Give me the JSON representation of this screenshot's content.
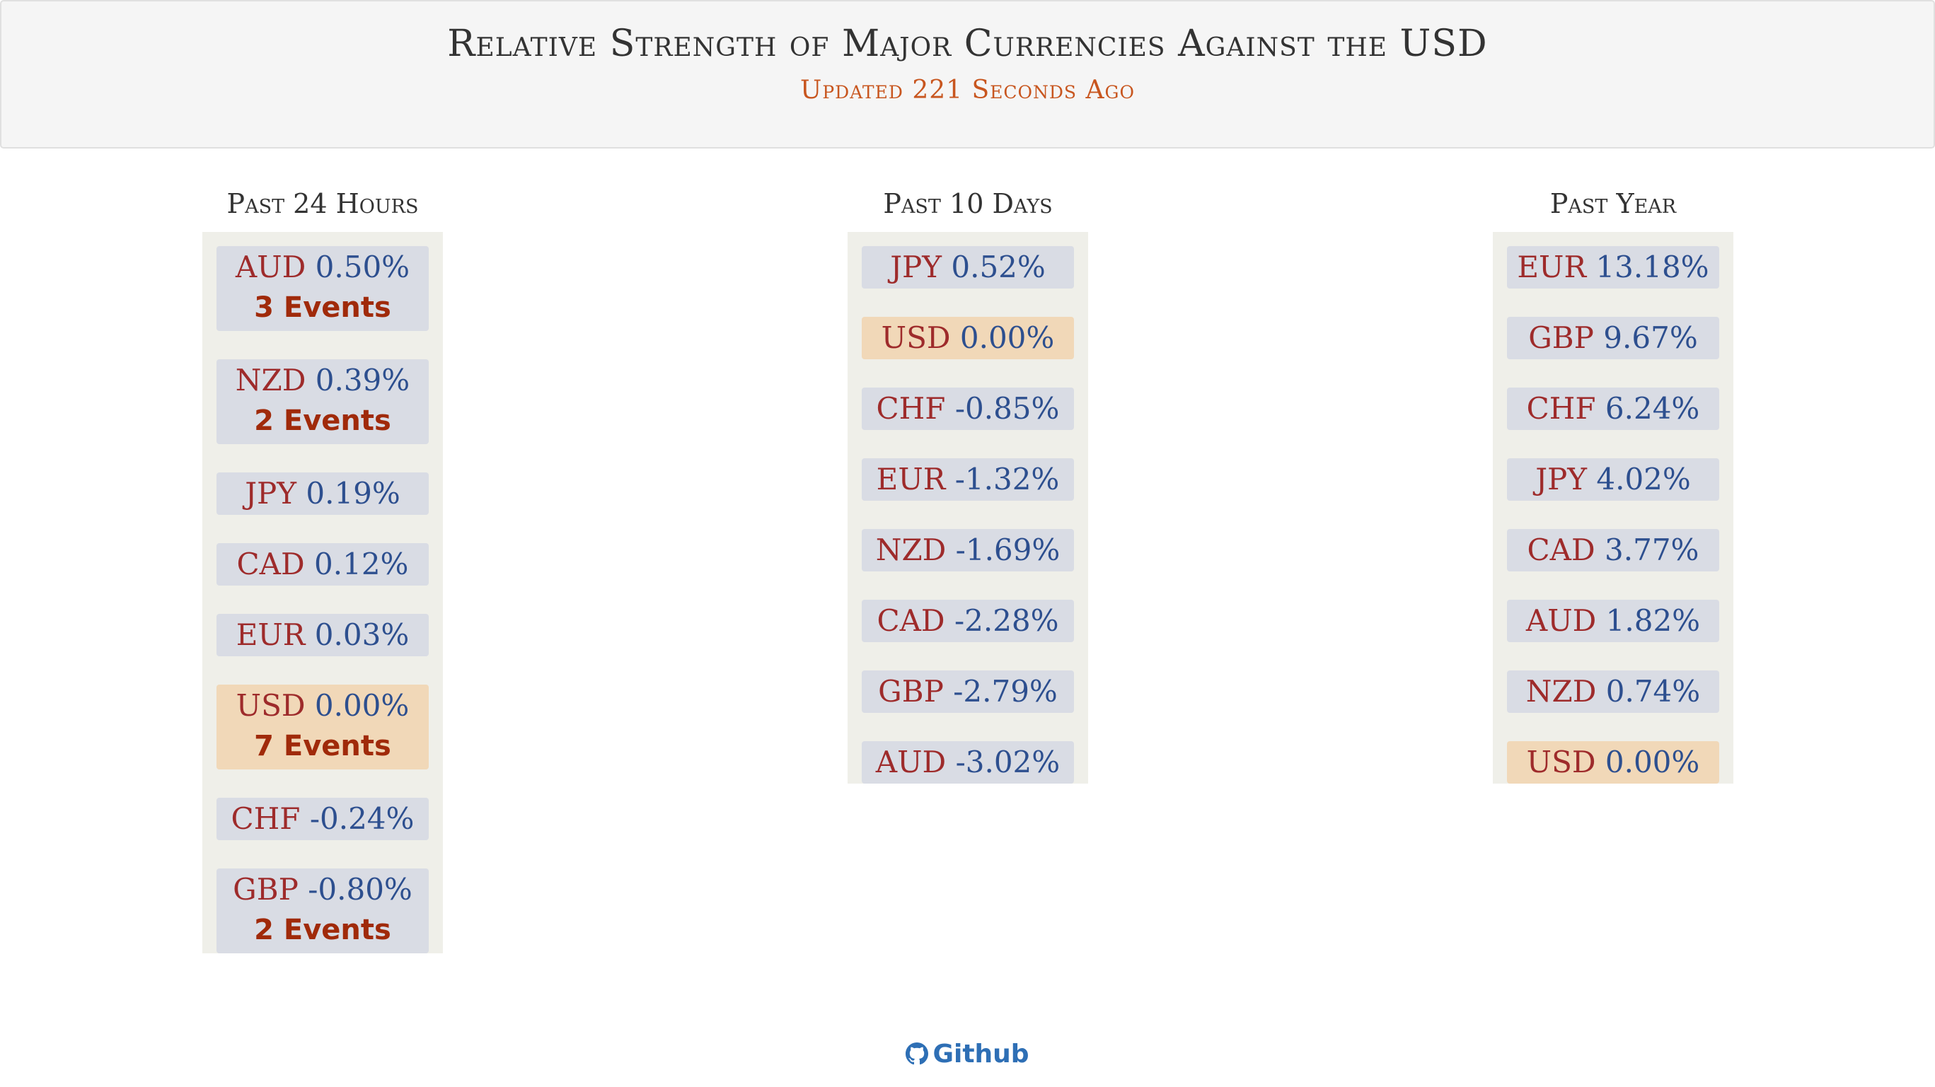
{
  "header": {
    "title": "Relative Strength of Major Currencies Against the USD",
    "subtitle": "Updated 221 Seconds Ago"
  },
  "columns": [
    {
      "heading": "Past 24 Hours",
      "items": [
        {
          "code": "AUD",
          "pct": "0.50%",
          "events": "3 Events"
        },
        {
          "code": "NZD",
          "pct": "0.39%",
          "events": "2 Events"
        },
        {
          "code": "JPY",
          "pct": "0.19%",
          "events": ""
        },
        {
          "code": "CAD",
          "pct": "0.12%",
          "events": ""
        },
        {
          "code": "EUR",
          "pct": "0.03%",
          "events": ""
        },
        {
          "code": "USD",
          "pct": "0.00%",
          "events": "7 Events"
        },
        {
          "code": "CHF",
          "pct": "-0.24%",
          "events": ""
        },
        {
          "code": "GBP",
          "pct": "-0.80%",
          "events": "2 Events"
        }
      ]
    },
    {
      "heading": "Past 10 Days",
      "items": [
        {
          "code": "JPY",
          "pct": "0.52%",
          "events": ""
        },
        {
          "code": "USD",
          "pct": "0.00%",
          "events": ""
        },
        {
          "code": "CHF",
          "pct": "-0.85%",
          "events": ""
        },
        {
          "code": "EUR",
          "pct": "-1.32%",
          "events": ""
        },
        {
          "code": "NZD",
          "pct": "-1.69%",
          "events": ""
        },
        {
          "code": "CAD",
          "pct": "-2.28%",
          "events": ""
        },
        {
          "code": "GBP",
          "pct": "-2.79%",
          "events": ""
        },
        {
          "code": "AUD",
          "pct": "-3.02%",
          "events": ""
        }
      ]
    },
    {
      "heading": "Past Year",
      "items": [
        {
          "code": "EUR",
          "pct": "13.18%",
          "events": ""
        },
        {
          "code": "GBP",
          "pct": "9.67%",
          "events": ""
        },
        {
          "code": "CHF",
          "pct": "6.24%",
          "events": ""
        },
        {
          "code": "JPY",
          "pct": "4.02%",
          "events": ""
        },
        {
          "code": "CAD",
          "pct": "3.77%",
          "events": ""
        },
        {
          "code": "AUD",
          "pct": "1.82%",
          "events": ""
        },
        {
          "code": "NZD",
          "pct": "0.74%",
          "events": ""
        },
        {
          "code": "USD",
          "pct": "0.00%",
          "events": ""
        }
      ]
    }
  ],
  "footer": {
    "icon": "github-icon",
    "link_label": "Github"
  },
  "colors": {
    "currency_code": "#9e2b2b",
    "percent": "#2d4f8f",
    "events": "#a02a0a",
    "usd_highlight": "#f1d8b8",
    "item_bg": "#d9dce4",
    "subtitle": "#c8561f",
    "link": "#2e6fb5"
  }
}
